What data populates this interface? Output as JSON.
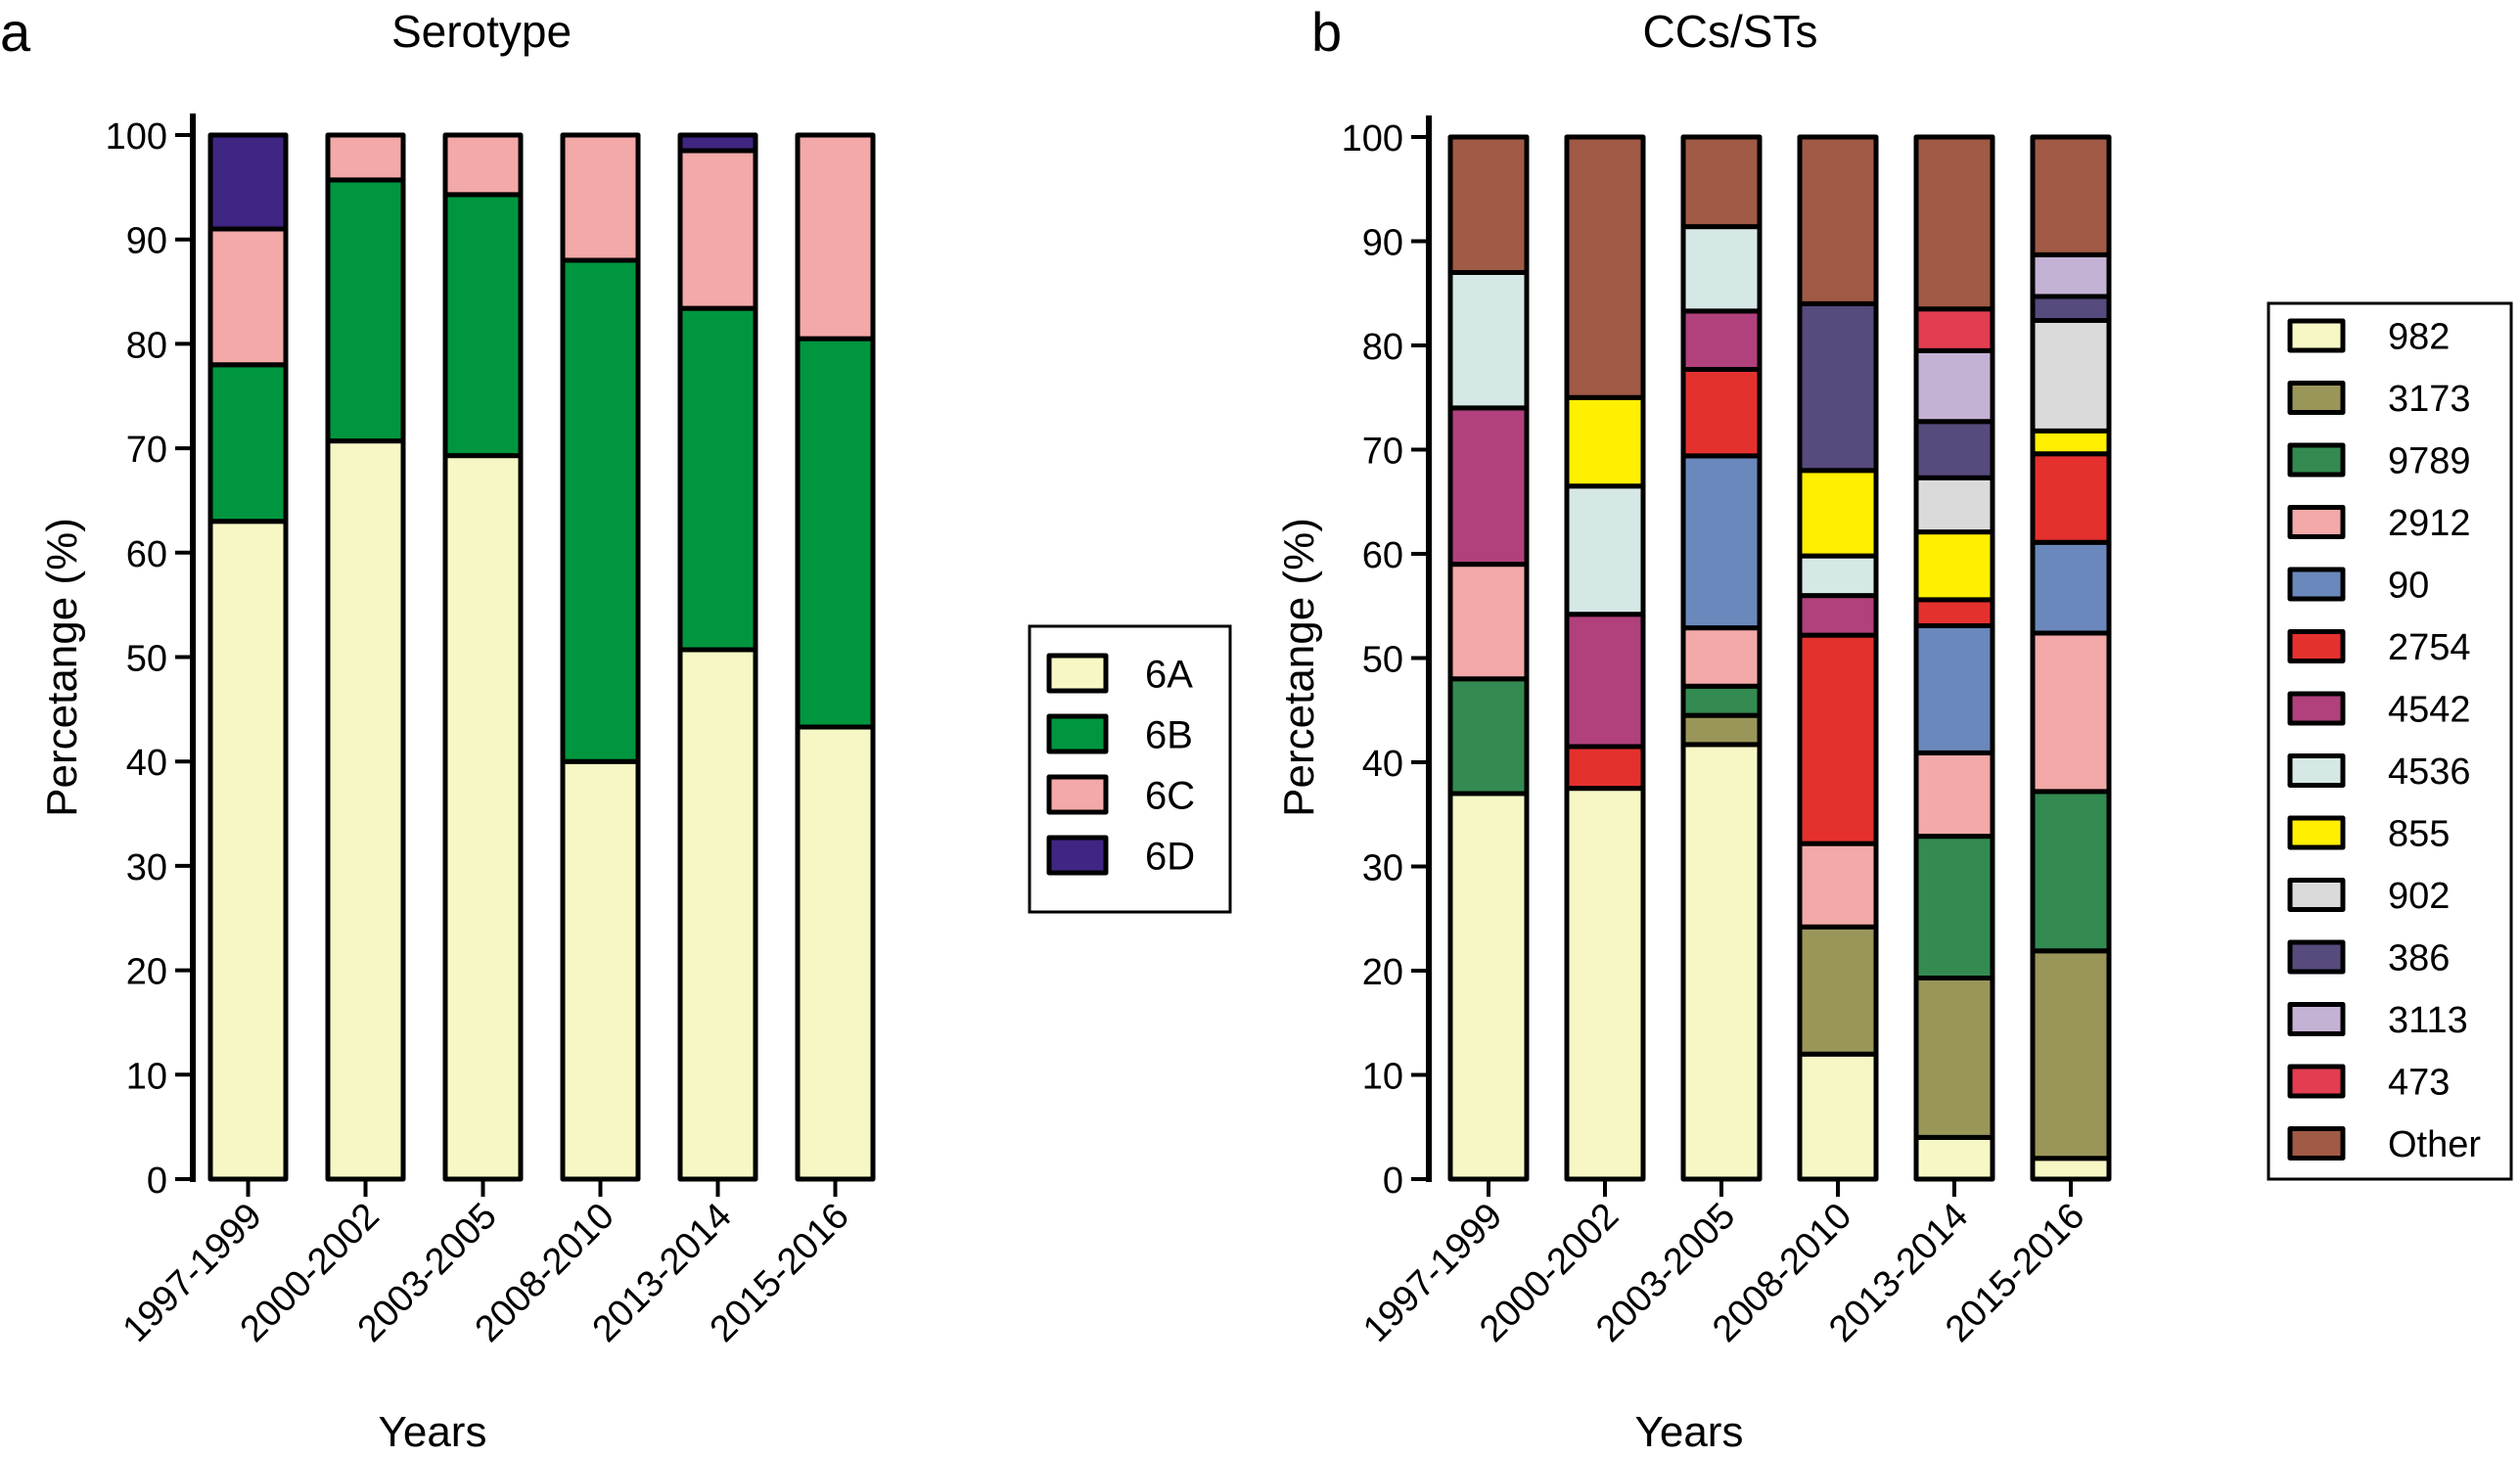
{
  "chart_data": [
    {
      "panel": "a",
      "type": "bar",
      "stacked": true,
      "title": "Serotype",
      "xlabel": "Years",
      "ylabel": "Percetange (%)",
      "ylim": [
        0,
        100
      ],
      "yticks": [
        0,
        10,
        20,
        30,
        40,
        50,
        60,
        70,
        80,
        90,
        100
      ],
      "categories": [
        "1997-1999",
        "2000-2002",
        "2003-2005",
        "2008-2010",
        "2013-2014",
        "2015-2016"
      ],
      "series": [
        {
          "name": "6A",
          "color": "#F7F7C6",
          "values": [
            63,
            70.7,
            69.3,
            40,
            50.7,
            43.3
          ]
        },
        {
          "name": "6B",
          "color": "#00963F",
          "values": [
            15,
            25,
            25,
            48,
            32.7,
            37.2
          ]
        },
        {
          "name": "6C",
          "color": "#F2A9A7",
          "values": [
            13,
            4.3,
            5.7,
            12,
            15.1,
            19.5
          ]
        },
        {
          "name": "6D",
          "color": "#3F2683",
          "values": [
            9,
            0,
            0,
            0,
            1.5,
            0
          ]
        }
      ],
      "legend_position": "right"
    },
    {
      "panel": "b",
      "type": "bar",
      "stacked": true,
      "title": "CCs/STs",
      "xlabel": "Years",
      "ylabel": "Percetange (%)",
      "ylim": [
        0,
        100
      ],
      "yticks": [
        0,
        10,
        20,
        30,
        40,
        50,
        60,
        70,
        80,
        90,
        100
      ],
      "categories": [
        "1997-1999",
        "2000-2002",
        "2003-2005",
        "2008-2010",
        "2013-2014",
        "2015-2016"
      ],
      "series": [
        {
          "name": "982",
          "color": "#F7F7C6",
          "values": [
            37,
            37.5,
            41.7,
            12,
            4,
            2
          ]
        },
        {
          "name": "3173",
          "color": "#9A9659",
          "values": [
            0,
            0,
            2.8,
            12.2,
            15.3,
            19.9
          ]
        },
        {
          "name": "9789",
          "color": "#338B51",
          "values": [
            11,
            0,
            2.8,
            0,
            13.6,
            15.3
          ]
        },
        {
          "name": "2912",
          "color": "#F2A9A7",
          "values": [
            11,
            0,
            5.6,
            8,
            8,
            15.2
          ]
        },
        {
          "name": "90",
          "color": "#6B88BC",
          "values": [
            0,
            0,
            16.5,
            0,
            12.2,
            8.7
          ]
        },
        {
          "name": "2754",
          "color": "#E5312E",
          "values": [
            0,
            4,
            8.3,
            20,
            2.5,
            8.5
          ]
        },
        {
          "name": "4542",
          "color": "#B0417D",
          "values": [
            15,
            12.7,
            5.6,
            3.8,
            0,
            0
          ]
        },
        {
          "name": "4536",
          "color": "#D6E8E6",
          "values": [
            13,
            12.3,
            8.1,
            3.8,
            0,
            0
          ]
        },
        {
          "name": "855",
          "color": "#FFEF00",
          "values": [
            0,
            8.5,
            0,
            8.2,
            6.5,
            2.2
          ]
        },
        {
          "name": "902",
          "color": "#DADADA",
          "values": [
            0,
            0,
            0,
            0,
            5.2,
            10.6
          ]
        },
        {
          "name": "386",
          "color": "#574A7C",
          "values": [
            0,
            0,
            0,
            16,
            5.4,
            2.3
          ]
        },
        {
          "name": "3113",
          "color": "#C4B2D5",
          "values": [
            0,
            0,
            0,
            0,
            6.8,
            4
          ]
        },
        {
          "name": "473",
          "color": "#E23D51",
          "values": [
            0,
            0,
            0,
            0,
            4,
            0
          ]
        },
        {
          "name": "Other",
          "color": "#A05A45",
          "values": [
            13,
            25,
            8.6,
            16,
            16.5,
            11.3
          ]
        }
      ],
      "legend_position": "right"
    }
  ],
  "panel_labels": {
    "a": "a",
    "b": "b"
  }
}
